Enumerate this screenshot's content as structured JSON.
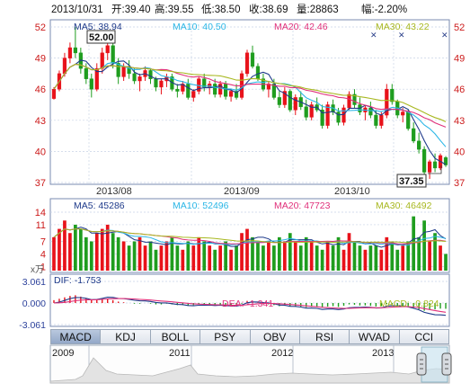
{
  "header": {
    "date": "2013/10/31",
    "open": "开:39.40",
    "high": "高:39.55",
    "low": "低:38.50",
    "close": "收:38.69",
    "volume": "量:28863",
    "change": "幅:-2.20%"
  },
  "colors": {
    "up": "#e8121a",
    "down": "#1f9d1f",
    "ma5": "#1e3a8a",
    "ma10": "#2ab6e6",
    "ma20": "#e0307a",
    "ma30": "#a8b820",
    "grid": "#c9d3e6",
    "axis": "#5a6e99",
    "label": "#cc1a1a"
  },
  "price_panel": {
    "ma_labels": [
      "MA5: 38.94",
      "MA10: 40.50",
      "MA20: 42.46",
      "MA30: 43.22"
    ],
    "high_marker": "52.00",
    "low_marker": "37.35",
    "month_labels": [
      "2013/08",
      "2013/09",
      "2013/10"
    ]
  },
  "volume_panel": {
    "ma_labels": [
      "MA5: 45286",
      "MA10: 52496",
      "MA20: 47723",
      "MA30: 46492"
    ],
    "unit": "x万"
  },
  "macd_panel": {
    "dif": "DIF: -1.753",
    "dea": "DEA: -1.341",
    "macd": "MACD: -0.824"
  },
  "tabs": [
    "MACD",
    "KDJ",
    "BOLL",
    "PSY",
    "OBV",
    "RSI",
    "WVAD",
    "CCI"
  ],
  "active_tab": "MACD",
  "overview": {
    "years": [
      "2009",
      "2011",
      "2012",
      "2013"
    ]
  },
  "chart_data": {
    "type": "candlestick",
    "price_axis": {
      "ylim": [
        37,
        52
      ],
      "ticks": [
        "52",
        "49",
        "46",
        "43",
        "40",
        "37"
      ]
    },
    "volume_axis": {
      "ylim": [
        0,
        14
      ],
      "ticks": [
        "14",
        "11",
        "7",
        "4",
        "1"
      ]
    },
    "macd_axis": {
      "ylim": [
        -3.061,
        3.061
      ],
      "ticks": [
        "3.061",
        "0.000",
        "-3.061"
      ]
    },
    "candles": [
      [
        45.1,
        46.2,
        45.0,
        46.0
      ],
      [
        46.0,
        47.8,
        45.8,
        47.5
      ],
      [
        47.5,
        49.5,
        47.2,
        49.0
      ],
      [
        49.0,
        50.5,
        48.5,
        50.0
      ],
      [
        50.0,
        52.0,
        49.0,
        49.5
      ],
      [
        49.5,
        50.0,
        47.5,
        48.0
      ],
      [
        48.0,
        48.5,
        46.5,
        47.0
      ],
      [
        47.0,
        47.5,
        45.2,
        46.0
      ],
      [
        46.0,
        48.5,
        45.8,
        48.0
      ],
      [
        48.0,
        50.0,
        47.5,
        49.5
      ],
      [
        49.5,
        51.5,
        48.8,
        50.2
      ],
      [
        50.2,
        50.5,
        48.0,
        48.5
      ],
      [
        48.5,
        49.0,
        46.5,
        47.2
      ],
      [
        47.2,
        48.5,
        46.8,
        48.2
      ],
      [
        48.2,
        48.8,
        47.0,
        47.5
      ],
      [
        47.5,
        48.0,
        46.5,
        46.8
      ],
      [
        46.8,
        47.5,
        45.8,
        47.2
      ],
      [
        47.2,
        48.2,
        46.8,
        47.8
      ],
      [
        47.8,
        48.0,
        46.5,
        47.0
      ],
      [
        47.0,
        47.2,
        45.8,
        46.2
      ],
      [
        46.2,
        47.0,
        45.5,
        46.8
      ],
      [
        46.8,
        47.5,
        46.2,
        47.2
      ],
      [
        47.2,
        47.5,
        45.8,
        46.0
      ],
      [
        46.0,
        46.5,
        45.2,
        45.8
      ],
      [
        45.8,
        46.8,
        45.5,
        46.5
      ],
      [
        46.5,
        47.0,
        45.0,
        45.2
      ],
      [
        45.2,
        46.0,
        44.8,
        45.8
      ],
      [
        45.8,
        47.2,
        45.5,
        47.0
      ],
      [
        47.0,
        47.5,
        45.8,
        46.2
      ],
      [
        46.2,
        46.8,
        45.5,
        46.5
      ],
      [
        46.5,
        47.0,
        45.2,
        45.5
      ],
      [
        45.5,
        46.8,
        45.2,
        46.5
      ],
      [
        46.5,
        46.8,
        45.0,
        45.3
      ],
      [
        45.3,
        46.0,
        44.8,
        45.8
      ],
      [
        45.8,
        46.5,
        45.0,
        45.2
      ],
      [
        45.2,
        47.8,
        45.0,
        47.5
      ],
      [
        47.5,
        49.8,
        47.2,
        49.5
      ],
      [
        49.5,
        50.2,
        48.0,
        48.2
      ],
      [
        48.2,
        48.5,
        46.8,
        47.0
      ],
      [
        47.0,
        47.5,
        45.8,
        46.0
      ],
      [
        46.0,
        46.8,
        45.2,
        46.5
      ],
      [
        46.5,
        47.0,
        45.0,
        45.2
      ],
      [
        45.2,
        45.8,
        44.2,
        44.5
      ],
      [
        44.5,
        46.2,
        44.2,
        45.8
      ],
      [
        45.8,
        46.0,
        43.8,
        44.0
      ],
      [
        44.0,
        45.5,
        43.5,
        45.2
      ],
      [
        45.2,
        45.8,
        44.0,
        44.3
      ],
      [
        44.3,
        45.0,
        43.0,
        43.3
      ],
      [
        43.3,
        44.8,
        43.0,
        44.5
      ],
      [
        44.5,
        45.2,
        43.8,
        44.0
      ],
      [
        44.0,
        44.5,
        42.2,
        42.5
      ],
      [
        42.5,
        44.8,
        42.2,
        44.5
      ],
      [
        44.5,
        45.0,
        43.5,
        43.8
      ],
      [
        43.8,
        44.2,
        42.5,
        42.8
      ],
      [
        42.8,
        44.5,
        42.5,
        44.2
      ],
      [
        44.2,
        45.8,
        44.0,
        45.5
      ],
      [
        45.5,
        46.0,
        44.2,
        44.5
      ],
      [
        44.5,
        45.2,
        43.5,
        43.8
      ],
      [
        43.8,
        44.5,
        43.0,
        44.2
      ],
      [
        44.2,
        44.8,
        43.2,
        43.5
      ],
      [
        43.5,
        44.0,
        42.2,
        42.5
      ],
      [
        42.5,
        43.8,
        42.2,
        43.5
      ],
      [
        43.5,
        46.5,
        43.2,
        46.0
      ],
      [
        46.0,
        46.5,
        44.5,
        44.8
      ],
      [
        44.8,
        45.0,
        43.2,
        43.5
      ],
      [
        43.5,
        44.2,
        42.8,
        43.8
      ],
      [
        43.8,
        44.0,
        42.0,
        42.2
      ],
      [
        42.2,
        42.8,
        40.8,
        41.0
      ],
      [
        41.0,
        41.8,
        39.8,
        40.2
      ],
      [
        40.2,
        40.5,
        37.5,
        38.0
      ],
      [
        38.0,
        39.2,
        37.35,
        39.0
      ],
      [
        39.0,
        39.8,
        38.0,
        38.4
      ],
      [
        38.4,
        39.8,
        38.2,
        39.6
      ],
      [
        39.4,
        39.55,
        38.5,
        38.69
      ]
    ],
    "volumes": [
      8,
      10,
      12,
      9,
      11,
      10,
      8,
      7,
      9,
      10,
      11,
      9,
      8,
      7,
      6,
      7,
      8,
      6,
      7,
      5,
      6,
      7,
      8,
      6,
      5,
      7,
      6,
      8,
      7,
      6,
      5,
      6,
      7,
      5,
      6,
      9,
      10,
      8,
      7,
      6,
      7,
      6,
      8,
      7,
      9,
      7,
      6,
      8,
      7,
      6,
      5,
      7,
      6,
      8,
      5,
      9,
      7,
      6,
      5,
      6,
      6,
      5,
      8,
      7,
      5,
      6,
      7,
      13,
      8,
      12,
      7,
      9,
      6,
      4
    ],
    "macd_hist": [
      0.4,
      0.6,
      0.8,
      1.0,
      1.1,
      0.9,
      0.7,
      0.5,
      0.45,
      0.55,
      0.6,
      0.4,
      0.2,
      0.1,
      0.0,
      -0.1,
      -0.1,
      0.0,
      -0.1,
      -0.2,
      -0.2,
      -0.1,
      -0.2,
      -0.3,
      -0.3,
      -0.4,
      -0.3,
      -0.2,
      -0.25,
      -0.3,
      -0.35,
      -0.3,
      -0.35,
      -0.3,
      -0.35,
      -0.1,
      0.3,
      0.25,
      0.05,
      -0.15,
      -0.2,
      -0.3,
      -0.45,
      -0.4,
      -0.5,
      -0.45,
      -0.5,
      -0.6,
      -0.55,
      -0.5,
      -0.65,
      -0.5,
      -0.45,
      -0.55,
      -0.4,
      -0.2,
      -0.25,
      -0.35,
      -0.35,
      -0.4,
      -0.5,
      -0.45,
      -0.15,
      -0.2,
      -0.35,
      -0.4,
      -0.55,
      -0.75,
      -0.9,
      -1.1,
      -0.95,
      -0.9,
      -0.8,
      -0.82
    ]
  }
}
